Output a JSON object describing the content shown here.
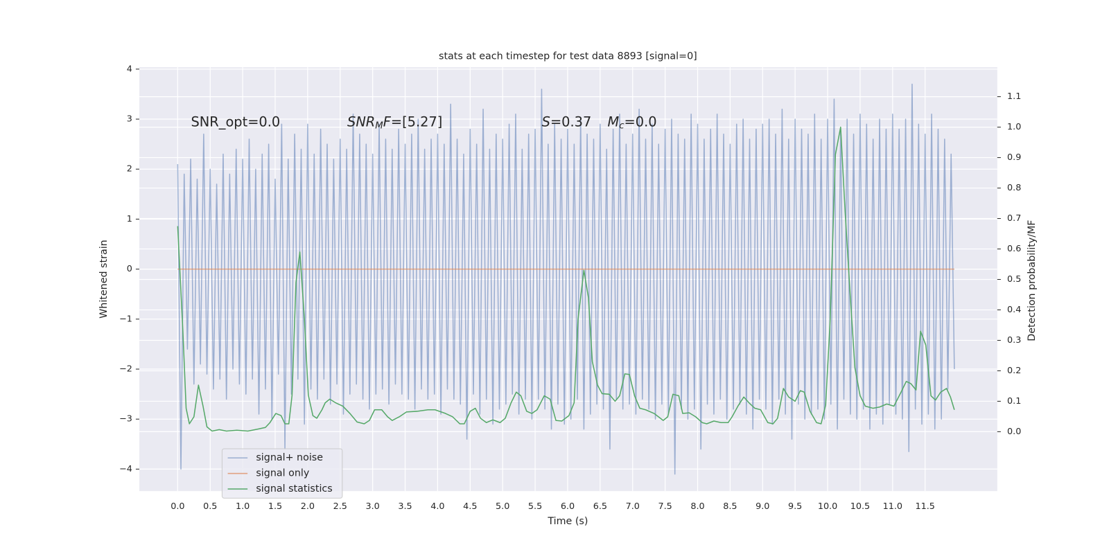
{
  "chart_data": {
    "type": "line",
    "title": "stats at each timestep for test data 8893 [signal=0]",
    "xlabel": "Time (s)",
    "ylabel": "Whitened strain",
    "y2label": "Detection probability/MF",
    "annotations": [
      [
        {
          "text": "SNR_opt=0.0",
          "style": "normal"
        }
      ],
      [
        {
          "text": "SNR",
          "style": "italic"
        },
        {
          "text": "M",
          "style": "italic-sub"
        },
        {
          "text": "F",
          "style": "italic"
        },
        {
          "text": "=[5.27]",
          "style": "normal"
        }
      ],
      [
        {
          "text": "S",
          "style": "italic"
        },
        {
          "text": "=0.37",
          "style": "normal"
        }
      ],
      [
        {
          "text": "M",
          "style": "italic"
        },
        {
          "text": "c",
          "style": "italic-sub"
        },
        {
          "text": "=0.0",
          "style": "normal"
        }
      ]
    ],
    "xlim": [
      -0.59,
      12.61
    ],
    "ylim": [
      -4.44,
      4.04
    ],
    "y2lim": [
      -0.195,
      1.197
    ],
    "xticks": [
      {
        "value": 0,
        "label": "0.0"
      },
      0.5,
      {
        "value": 1,
        "label": "1.0"
      },
      1.5,
      {
        "value": 2,
        "label": "2.0"
      },
      2.5,
      {
        "value": 3,
        "label": "3.0"
      },
      3.5,
      {
        "value": 4,
        "label": "4.0"
      },
      4.5,
      {
        "value": 5,
        "label": "5.0"
      },
      5.5,
      {
        "value": 6,
        "label": "6.0"
      },
      6.5,
      {
        "value": 7,
        "label": "7.0"
      },
      7.5,
      {
        "value": 8,
        "label": "8.0"
      },
      8.5,
      {
        "value": 9,
        "label": "9.0"
      },
      9.5,
      {
        "value": 10,
        "label": "10.0"
      },
      10.5,
      {
        "value": 11,
        "label": "11.0"
      },
      11.5
    ],
    "yticks": [
      {
        "value": -4,
        "label": "−4"
      },
      {
        "value": -3,
        "label": "−3"
      },
      {
        "value": -2,
        "label": "−2"
      },
      {
        "value": -1,
        "label": "−1"
      },
      0,
      1,
      2,
      3,
      4
    ],
    "y2ticks": [
      {
        "value": 0,
        "label": "0.0"
      },
      0.1,
      0.2,
      0.3,
      0.4,
      0.5,
      0.6,
      0.7,
      0.8,
      0.9,
      {
        "value": 1,
        "label": "1.0"
      },
      1.1
    ],
    "grid": true,
    "legend": "lower left",
    "series": [
      {
        "name": "signal+ noise",
        "color": "#4c72b0",
        "alpha": 0.5,
        "x": [
          0,
          0.05,
          0.1,
          0.15,
          0.2,
          0.25,
          0.3,
          0.35,
          0.4,
          0.45,
          0.5,
          0.55,
          0.6,
          0.65,
          0.7,
          0.75,
          0.8,
          0.85,
          0.9,
          0.95,
          1,
          1.05,
          1.1,
          1.15,
          1.2,
          1.25,
          1.3,
          1.35,
          1.4,
          1.45,
          1.5,
          1.55,
          1.6,
          1.65,
          1.7,
          1.75,
          1.8,
          1.85,
          1.9,
          1.95,
          2,
          2.05,
          2.1,
          2.15,
          2.2,
          2.25,
          2.3,
          2.35,
          2.4,
          2.45,
          2.5,
          2.55,
          2.6,
          2.65,
          2.7,
          2.75,
          2.8,
          2.85,
          2.9,
          2.95,
          3,
          3.05,
          3.1,
          3.15,
          3.2,
          3.25,
          3.3,
          3.35,
          3.4,
          3.45,
          3.5,
          3.55,
          3.6,
          3.65,
          3.7,
          3.75,
          3.8,
          3.85,
          3.9,
          3.95,
          4,
          4.05,
          4.1,
          4.15,
          4.2,
          4.25,
          4.3,
          4.35,
          4.4,
          4.45,
          4.5,
          4.55,
          4.6,
          4.65,
          4.7,
          4.75,
          4.8,
          4.85,
          4.9,
          4.95,
          5,
          5.05,
          5.1,
          5.15,
          5.2,
          5.25,
          5.3,
          5.35,
          5.4,
          5.45,
          5.5,
          5.55,
          5.6,
          5.65,
          5.7,
          5.75,
          5.8,
          5.85,
          5.9,
          5.95,
          6,
          6.05,
          6.1,
          6.15,
          6.2,
          6.25,
          6.3,
          6.35,
          6.4,
          6.45,
          6.5,
          6.55,
          6.6,
          6.65,
          6.7,
          6.75,
          6.8,
          6.85,
          6.9,
          6.95,
          7,
          7.05,
          7.1,
          7.15,
          7.2,
          7.25,
          7.3,
          7.35,
          7.4,
          7.45,
          7.5,
          7.55,
          7.6,
          7.65,
          7.7,
          7.75,
          7.8,
          7.85,
          7.9,
          7.95,
          8,
          8.05,
          8.1,
          8.15,
          8.2,
          8.25,
          8.3,
          8.35,
          8.4,
          8.45,
          8.5,
          8.55,
          8.6,
          8.65,
          8.7,
          8.75,
          8.8,
          8.85,
          8.9,
          8.95,
          9,
          9.05,
          9.1,
          9.15,
          9.2,
          9.25,
          9.3,
          9.35,
          9.4,
          9.45,
          9.5,
          9.55,
          9.6,
          9.65,
          9.7,
          9.75,
          9.8,
          9.85,
          9.9,
          9.95,
          10,
          10.05,
          10.1,
          10.15,
          10.2,
          10.25,
          10.3,
          10.35,
          10.4,
          10.45,
          10.5,
          10.55,
          10.6,
          10.65,
          10.7,
          10.75,
          10.8,
          10.85,
          10.9,
          10.95,
          11,
          11.05,
          11.1,
          11.15,
          11.2,
          11.25,
          11.3,
          11.35,
          11.4,
          11.45,
          11.5,
          11.55,
          11.6,
          11.65,
          11.7,
          11.75,
          11.8,
          11.85,
          11.9,
          11.95
        ],
        "values": [
          2.1,
          -4.0,
          1.9,
          -1.6,
          2.2,
          -2.3,
          1.8,
          -1.9,
          2.7,
          -2.1,
          2.0,
          -2.4,
          1.7,
          -2.2,
          2.3,
          -2.6,
          1.9,
          -2.0,
          2.4,
          -2.3,
          2.2,
          -2.5,
          2.6,
          -2.2,
          2.0,
          -2.9,
          2.3,
          -2.4,
          2.5,
          -3.0,
          1.8,
          -2.1,
          2.9,
          -3.6,
          2.2,
          -2.5,
          2.7,
          -2.2,
          2.4,
          -3.1,
          2.9,
          -2.4,
          2.3,
          -2.6,
          2.8,
          -2.2,
          2.5,
          -2.7,
          2.2,
          -2.3,
          2.6,
          -2.9,
          2.4,
          -2.5,
          3.1,
          -2.3,
          2.7,
          -2.6,
          2.5,
          -2.8,
          2.3,
          -2.5,
          2.9,
          -2.4,
          2.6,
          -2.7,
          2.4,
          -2.3,
          2.8,
          -2.5,
          2.5,
          -2.6,
          2.7,
          -2.8,
          3.0,
          -2.4,
          2.4,
          -2.6,
          2.6,
          -2.5,
          2.7,
          -2.9,
          2.5,
          -2.4,
          3.3,
          -2.6,
          2.6,
          -2.7,
          2.3,
          -3.4,
          2.8,
          -2.5,
          2.5,
          -2.9,
          3.2,
          -2.6,
          2.4,
          -3.1,
          2.7,
          -2.8,
          2.6,
          -2.7,
          2.9,
          -2.5,
          3.1,
          -2.9,
          2.4,
          -2.6,
          2.7,
          -3.0,
          2.8,
          -2.6,
          3.6,
          -2.8,
          2.5,
          -3.2,
          2.9,
          -2.7,
          2.6,
          -3.1,
          2.8,
          -3.0,
          2.5,
          -2.6,
          3.0,
          -3.2,
          2.7,
          -2.9,
          2.6,
          -2.7,
          2.9,
          -2.8,
          2.4,
          -3.6,
          2.8,
          -2.6,
          3.1,
          -2.8,
          2.5,
          -2.7,
          2.7,
          -2.9,
          3.2,
          -2.6,
          2.6,
          -2.8,
          2.9,
          -3.0,
          2.5,
          -2.7,
          2.8,
          -2.9,
          3.0,
          -4.1,
          2.7,
          -2.8,
          2.6,
          -3.0,
          3.1,
          -2.8,
          2.9,
          -3.6,
          2.6,
          -2.7,
          2.8,
          -2.9,
          3.1,
          -2.6,
          2.7,
          -3.0,
          2.5,
          -2.8,
          2.9,
          -2.7,
          3.0,
          -2.9,
          2.6,
          -3.2,
          2.8,
          -2.6,
          2.9,
          -2.8,
          3.0,
          -3.1,
          2.7,
          -2.6,
          3.2,
          -2.9,
          2.6,
          -3.4,
          3.0,
          -2.7,
          2.8,
          -3.0,
          2.7,
          -2.9,
          3.1,
          -2.8,
          2.6,
          -3.0,
          3.0,
          -2.7,
          3.4,
          -3.2,
          2.8,
          -2.6,
          3.0,
          -2.9,
          2.7,
          -3.0,
          3.1,
          -2.8,
          2.9,
          -3.2,
          2.6,
          -2.9,
          3.0,
          -3.1,
          2.8,
          -2.7,
          3.1,
          -2.9,
          2.8,
          -3.0,
          3.0,
          -3.65,
          3.7,
          -2.8,
          2.9,
          -3.1,
          2.7,
          -2.9,
          3.1,
          -3.2,
          2.8,
          -3.0,
          2.6,
          -2.4,
          2.3,
          -2.0
        ]
      },
      {
        "name": "signal only",
        "color": "#dd8452",
        "alpha": 0.7,
        "x": [
          0,
          11.95
        ],
        "values": [
          0,
          0
        ]
      },
      {
        "name": "signal statistics",
        "color": "#55a868",
        "alpha": 1,
        "axis": "y2",
        "x": [
          0,
          0.08,
          0.13,
          0.18,
          0.25,
          0.32,
          0.39,
          0.45,
          0.53,
          0.64,
          0.75,
          0.91,
          1.08,
          1.24,
          1.35,
          1.42,
          1.51,
          1.59,
          1.65,
          1.71,
          1.76,
          1.82,
          1.88,
          1.95,
          2.01,
          2.08,
          2.14,
          2.22,
          2.27,
          2.34,
          2.43,
          2.54,
          2.65,
          2.76,
          2.87,
          2.95,
          3.03,
          3.14,
          3.23,
          3.3,
          3.41,
          3.52,
          3.68,
          3.85,
          3.96,
          4.12,
          4.23,
          4.34,
          4.41,
          4.5,
          4.58,
          4.66,
          4.75,
          4.85,
          4.96,
          5.04,
          5.13,
          5.21,
          5.28,
          5.37,
          5.45,
          5.53,
          5.64,
          5.73,
          5.82,
          5.91,
          6.02,
          6.1,
          6.16,
          6.25,
          6.32,
          6.38,
          6.46,
          6.53,
          6.64,
          6.73,
          6.8,
          6.88,
          6.95,
          7.03,
          7.11,
          7.2,
          7.33,
          7.47,
          7.54,
          7.62,
          7.71,
          7.77,
          7.87,
          7.97,
          8.07,
          8.14,
          8.25,
          8.36,
          8.47,
          8.53,
          8.62,
          8.71,
          8.79,
          8.88,
          8.97,
          9.08,
          9.16,
          9.23,
          9.32,
          9.4,
          9.5,
          9.58,
          9.64,
          9.73,
          9.83,
          9.9,
          9.97,
          10.04,
          10.12,
          10.2,
          10.27,
          10.35,
          10.42,
          10.5,
          10.58,
          10.7,
          10.8,
          10.91,
          11.02,
          11.13,
          11.21,
          11.28,
          11.36,
          11.43,
          11.51,
          11.59,
          11.66,
          11.74,
          11.83,
          11.89,
          11.95
        ],
        "values": [
          0.675,
          0.33,
          0.077,
          0.026,
          0.049,
          0.153,
          0.084,
          0.016,
          0.002,
          0.007,
          0.002,
          0.005,
          0.002,
          0.009,
          0.014,
          0.03,
          0.06,
          0.053,
          0.026,
          0.026,
          0.12,
          0.49,
          0.59,
          0.37,
          0.12,
          0.053,
          0.044,
          0.072,
          0.095,
          0.107,
          0.095,
          0.084,
          0.06,
          0.032,
          0.026,
          0.037,
          0.072,
          0.072,
          0.049,
          0.037,
          0.049,
          0.065,
          0.067,
          0.072,
          0.072,
          0.06,
          0.049,
          0.026,
          0.026,
          0.067,
          0.077,
          0.044,
          0.03,
          0.039,
          0.03,
          0.044,
          0.095,
          0.13,
          0.118,
          0.067,
          0.06,
          0.072,
          0.118,
          0.107,
          0.037,
          0.035,
          0.053,
          0.095,
          0.37,
          0.53,
          0.44,
          0.23,
          0.153,
          0.125,
          0.123,
          0.1,
          0.118,
          0.19,
          0.188,
          0.118,
          0.077,
          0.072,
          0.06,
          0.037,
          0.049,
          0.123,
          0.118,
          0.06,
          0.062,
          0.049,
          0.03,
          0.026,
          0.035,
          0.03,
          0.03,
          0.049,
          0.084,
          0.114,
          0.095,
          0.077,
          0.072,
          0.03,
          0.026,
          0.044,
          0.142,
          0.114,
          0.1,
          0.135,
          0.13,
          0.067,
          0.03,
          0.026,
          0.088,
          0.37,
          0.91,
          1.0,
          0.72,
          0.44,
          0.21,
          0.118,
          0.084,
          0.077,
          0.081,
          0.091,
          0.084,
          0.13,
          0.165,
          0.158,
          0.137,
          0.33,
          0.285,
          0.118,
          0.104,
          0.13,
          0.142,
          0.114,
          0.072
        ]
      }
    ]
  }
}
